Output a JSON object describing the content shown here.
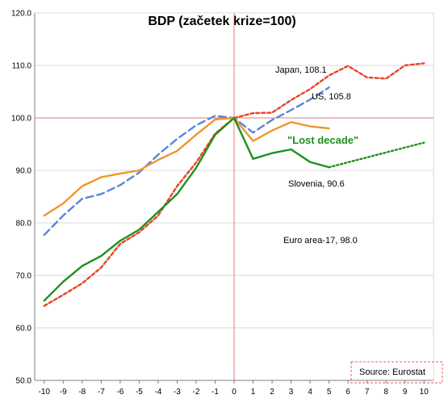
{
  "chart_data": {
    "type": "line",
    "title": "BDP (začetek krize=100)",
    "x": [
      -10,
      -9,
      -8,
      -7,
      -6,
      -5,
      -4,
      -3,
      -2,
      -1,
      0,
      1,
      2,
      3,
      4,
      5,
      6,
      7,
      8,
      9,
      10
    ],
    "x_ticks": [
      "-10",
      "-9",
      "-8",
      "-7",
      "-6",
      "-5",
      "-4",
      "-3",
      "-2",
      "-1",
      "0",
      "1",
      "2",
      "3",
      "4",
      "5",
      "6",
      "7",
      "8",
      "9",
      "10"
    ],
    "y_ticks": [
      "50.0",
      "60.0",
      "70.0",
      "80.0",
      "90.0",
      "100.0",
      "110.0",
      "120.0"
    ],
    "ylim": [
      50,
      120
    ],
    "xlim": [
      -10.5,
      10.5
    ],
    "series": [
      {
        "name": "Japan, 108.1",
        "color": "#e8432a",
        "style": "dashed",
        "x": [
          -10,
          -9,
          -8,
          -7,
          -6,
          -5,
          -4,
          -3,
          -2,
          -1,
          0,
          1,
          2,
          3,
          4,
          5,
          6,
          7,
          8,
          9,
          10
        ],
        "values": [
          64.2,
          66.3,
          68.5,
          71.5,
          76.0,
          78.2,
          81.4,
          87.0,
          91.5,
          97.0,
          100.0,
          100.9,
          101.0,
          103.4,
          105.5,
          108.1,
          109.9,
          107.7,
          107.5,
          110.0,
          110.4
        ]
      },
      {
        "name": "US, 105.8",
        "color": "#5b84d8",
        "style": "longdash",
        "x": [
          -10,
          -9,
          -8,
          -7,
          -6,
          -5,
          -4,
          -3,
          -2,
          -1,
          0,
          1,
          2,
          3,
          4,
          5
        ],
        "values": [
          77.7,
          81.4,
          84.6,
          85.5,
          87.2,
          89.6,
          93.0,
          96.0,
          98.6,
          100.4,
          100.0,
          97.2,
          99.6,
          101.5,
          103.5,
          105.8
        ]
      },
      {
        "name": "Euro area-17, 98.0",
        "color": "#f0962e",
        "style": "solid",
        "x": [
          -10,
          -9,
          -8,
          -7,
          -6,
          -5,
          -4,
          -3,
          -2,
          -1,
          0,
          1,
          2,
          3,
          4,
          5
        ],
        "values": [
          81.4,
          83.7,
          87.0,
          88.7,
          89.4,
          90.0,
          92.0,
          93.7,
          96.8,
          99.7,
          100.0,
          95.6,
          97.6,
          99.2,
          98.4,
          98.0
        ]
      },
      {
        "name": "Slovenia, 90.6",
        "color": "#1f8f1f",
        "style": "solid",
        "x": [
          -10,
          -9,
          -8,
          -7,
          -6,
          -5,
          -4,
          -3,
          -2,
          -1,
          0,
          1,
          2,
          3,
          4,
          5
        ],
        "values": [
          65.2,
          68.8,
          71.8,
          73.7,
          76.6,
          78.7,
          82.1,
          85.5,
          90.5,
          96.8,
          100.0,
          92.2,
          93.3,
          94.0,
          91.6,
          90.6
        ]
      },
      {
        "name": "",
        "color": "#1f8f1f",
        "style": "dotted",
        "x": [
          5,
          10
        ],
        "values": [
          90.6,
          95.3
        ]
      }
    ],
    "reference_lines": {
      "x": 0,
      "y": 100,
      "color": "#e35b5b"
    },
    "annotations": {
      "japan": "Japan, 108.1",
      "us": "US, 105.8",
      "lost_decade": "\"Lost decade\"",
      "slovenia": "Slovenia, 90.6",
      "euro": "Euro area-17, 98.0"
    },
    "source": "Source: Eurostat",
    "grid": "horizontal"
  }
}
